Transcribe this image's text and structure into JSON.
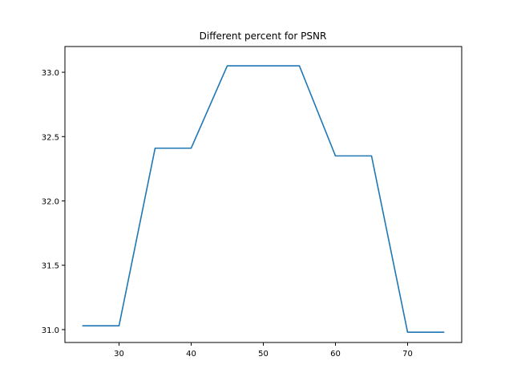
{
  "chart_data": {
    "type": "line",
    "title": "Different percent for PSNR",
    "xlabel": "",
    "ylabel": "",
    "xlim": [
      22.5,
      77.5
    ],
    "ylim": [
      30.9,
      33.2
    ],
    "x_ticks": [
      30,
      40,
      50,
      60,
      70
    ],
    "y_ticks": [
      31.0,
      31.5,
      32.0,
      32.5,
      33.0
    ],
    "x_tick_labels": [
      "30",
      "40",
      "50",
      "60",
      "70"
    ],
    "y_tick_labels": [
      "31.0",
      "31.5",
      "32.0",
      "32.5",
      "33.0"
    ],
    "grid": false,
    "series": [
      {
        "color": "#1f77b4",
        "x": [
          25,
          30,
          35,
          40,
          45,
          50,
          55,
          60,
          65,
          70,
          75
        ],
        "y": [
          31.03,
          31.03,
          32.41,
          32.41,
          33.05,
          33.05,
          33.05,
          32.35,
          32.35,
          30.98,
          30.98
        ]
      }
    ]
  }
}
